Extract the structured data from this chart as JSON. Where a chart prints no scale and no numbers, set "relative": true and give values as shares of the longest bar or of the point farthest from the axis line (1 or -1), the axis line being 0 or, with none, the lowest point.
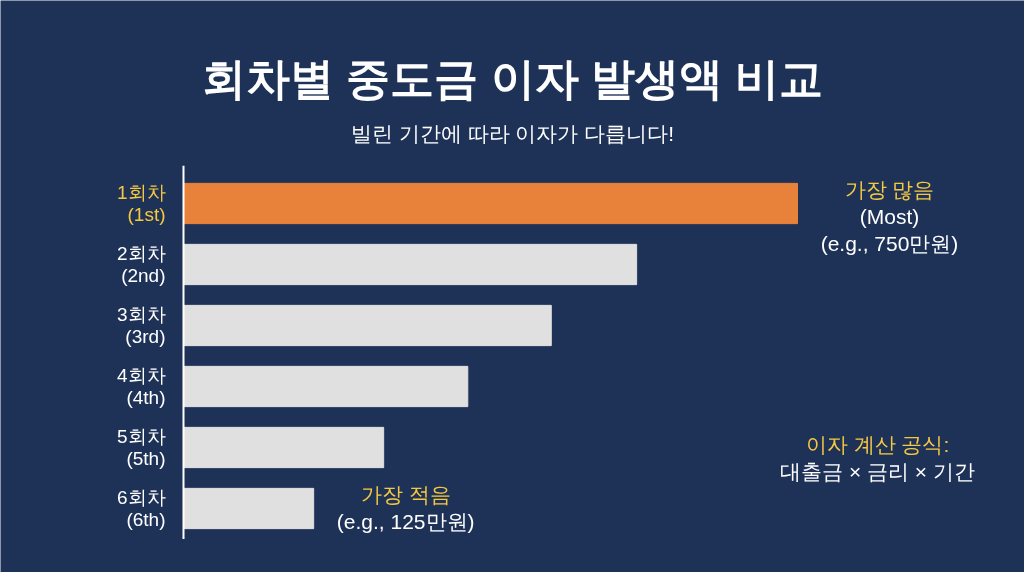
{
  "chart_data": {
    "type": "bar",
    "orientation": "horizontal",
    "relative": true,
    "title": "회차별 중도금 이자 발생액 비교",
    "subtitle": "빌린 기간에 따라 이자가 다릅니다!",
    "categories": [
      "1회차\n(1st)",
      "2회차\n(2nd)",
      "3회차\n(3rd)",
      "4회차\n(4th)",
      "5회차\n(5th)",
      "6회차\n(6th)"
    ],
    "values": [
      1,
      0.738,
      0.599,
      0.463,
      0.326,
      0.212
    ],
    "colors": [
      "#e8813a",
      "#e0e0e0",
      "#e0e0e0",
      "#e0e0e0",
      "#e0e0e0",
      "#e0e0e0"
    ],
    "annotations": [
      {
        "text": "가장 많음\n(Most)\n(e.g., 750만원)",
        "x": 1,
        "y": "1회차\n(1st)"
      },
      {
        "text": "가장 적음\n(e.g., 125만원)",
        "x": 0.212,
        "y": "6회차\n(6th)"
      },
      "이자 계산 공식:\n대출금 × 금리 × 기간"
    ],
    "grid": false
  }
}
